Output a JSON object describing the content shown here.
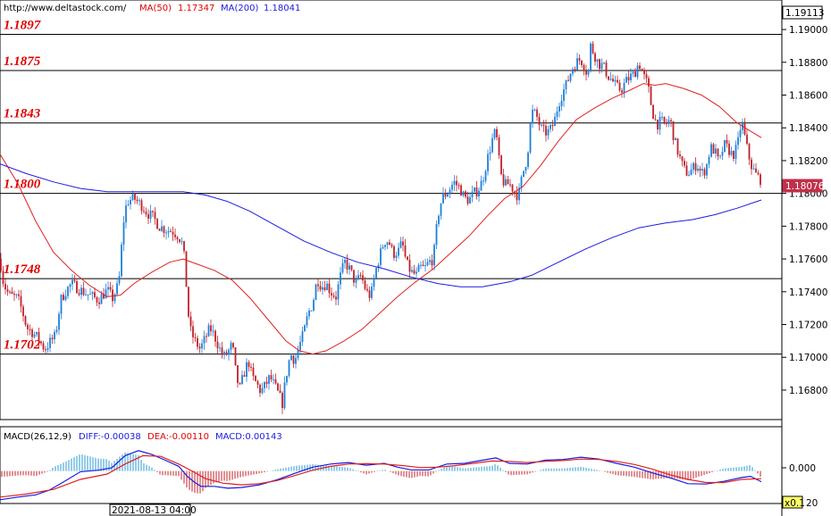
{
  "header": {
    "site": "http://www.deltastock.com/",
    "ma50_label": "MA(50)",
    "ma50_value": "1.17347",
    "ma200_label": "MA(200)",
    "ma200_value": "1.18041"
  },
  "price_box_top": "1.19113",
  "price_box_current": "1.18076",
  "macd_header": {
    "name": "MACD(26,12,9)",
    "diff": "DIFF:-0.00038",
    "dea": "DEA:-0.00110",
    "macd": "MACD:0.00143"
  },
  "macd_axis_zero": "0.000",
  "macd_scale_label": "x0.1",
  "macd_scale_suffix": "20",
  "date_label": "2021-08-13 04:00",
  "colors": {
    "bull": "#1e7fd8",
    "bear": "#c0202a",
    "ma50": "#e02020",
    "ma200": "#1a1ae0",
    "level_text": "#e00000",
    "diff_line": "#1a1ae0",
    "dea_line": "#e02020",
    "hist_pos": "#2a9ad0",
    "hist_neg": "#c0202a"
  },
  "chart_data": {
    "type": "candlestick",
    "y_ticks": [
      "1.19000",
      "1.18800",
      "1.18600",
      "1.18400",
      "1.18200",
      "1.18000",
      "1.17800",
      "1.17600",
      "1.17400",
      "1.17200",
      "1.17000",
      "1.16800"
    ],
    "ylim": [
      1.1662,
      1.1918
    ],
    "levels": [
      {
        "label": "1.1897",
        "value": 1.1897
      },
      {
        "label": "1.1875",
        "value": 1.1875
      },
      {
        "label": "1.1843",
        "value": 1.1843
      },
      {
        "label": "1.1800",
        "value": 1.18
      },
      {
        "label": "1.1748",
        "value": 1.1748
      },
      {
        "label": "1.1702",
        "value": 1.1702
      }
    ],
    "price_path": [
      [
        0,
        1.176
      ],
      [
        4,
        1.1745
      ],
      [
        10,
        1.1738
      ],
      [
        20,
        1.1736
      ],
      [
        25,
        1.1728
      ],
      [
        30,
        1.1718
      ],
      [
        35,
        1.1716
      ],
      [
        42,
        1.1712
      ],
      [
        50,
        1.1705
      ],
      [
        57,
        1.171
      ],
      [
        62,
        1.1713
      ],
      [
        68,
        1.1735
      ],
      [
        73,
        1.174
      ],
      [
        80,
        1.1745
      ],
      [
        90,
        1.1741
      ],
      [
        100,
        1.1738
      ],
      [
        110,
        1.1735
      ],
      [
        120,
        1.1741
      ],
      [
        126,
        1.1736
      ],
      [
        133,
        1.1745
      ],
      [
        138,
        1.1782
      ],
      [
        142,
        1.1795
      ],
      [
        150,
        1.1797
      ],
      [
        158,
        1.1793
      ],
      [
        165,
        1.1788
      ],
      [
        172,
        1.1785
      ],
      [
        178,
        1.178
      ],
      [
        185,
        1.1778
      ],
      [
        193,
        1.1777
      ],
      [
        200,
        1.1774
      ],
      [
        205,
        1.1768
      ],
      [
        208,
        1.1748
      ],
      [
        212,
        1.1718
      ],
      [
        218,
        1.171
      ],
      [
        224,
        1.1705
      ],
      [
        230,
        1.1712
      ],
      [
        235,
        1.1718
      ],
      [
        240,
        1.1713
      ],
      [
        246,
        1.1705
      ],
      [
        250,
        1.17
      ],
      [
        255,
        1.1703
      ],
      [
        260,
        1.1708
      ],
      [
        264,
        1.169
      ],
      [
        268,
        1.168
      ],
      [
        273,
        1.169
      ],
      [
        278,
        1.1698
      ],
      [
        282,
        1.1688
      ],
      [
        287,
        1.1684
      ],
      [
        292,
        1.1679
      ],
      [
        297,
        1.1683
      ],
      [
        302,
        1.1688
      ],
      [
        307,
        1.1683
      ],
      [
        312,
        1.1677
      ],
      [
        316,
        1.1672
      ],
      [
        320,
        1.1688
      ],
      [
        325,
        1.1702
      ],
      [
        330,
        1.1698
      ],
      [
        335,
        1.1707
      ],
      [
        340,
        1.1715
      ],
      [
        345,
        1.1727
      ],
      [
        350,
        1.1733
      ],
      [
        355,
        1.1748
      ],
      [
        360,
        1.1743
      ],
      [
        365,
        1.1745
      ],
      [
        370,
        1.174
      ],
      [
        376,
        1.1737
      ],
      [
        382,
        1.1752
      ],
      [
        386,
        1.1758
      ],
      [
        392,
        1.1753
      ],
      [
        398,
        1.1745
      ],
      [
        404,
        1.175
      ],
      [
        410,
        1.174
      ],
      [
        415,
        1.1737
      ],
      [
        420,
        1.1752
      ],
      [
        425,
        1.1762
      ],
      [
        430,
        1.1771
      ],
      [
        435,
        1.1771
      ],
      [
        440,
        1.1763
      ],
      [
        446,
        1.1765
      ],
      [
        450,
        1.177
      ],
      [
        455,
        1.1757
      ],
      [
        460,
        1.1752
      ],
      [
        466,
        1.175
      ],
      [
        470,
        1.1755
      ],
      [
        475,
        1.1754
      ],
      [
        480,
        1.1758
      ],
      [
        485,
        1.176
      ],
      [
        490,
        1.1786
      ],
      [
        495,
        1.1798
      ],
      [
        500,
        1.18
      ],
      [
        508,
        1.1807
      ],
      [
        515,
        1.1803
      ],
      [
        520,
        1.1797
      ],
      [
        525,
        1.1796
      ],
      [
        530,
        1.18
      ],
      [
        535,
        1.1802
      ],
      [
        540,
        1.1808
      ],
      [
        545,
        1.182
      ],
      [
        552,
        1.1835
      ],
      [
        555,
        1.1838
      ],
      [
        560,
        1.1812
      ],
      [
        565,
        1.1805
      ],
      [
        570,
        1.1806
      ],
      [
        575,
        1.1802
      ],
      [
        580,
        1.1798
      ],
      [
        585,
        1.1812
      ],
      [
        590,
        1.1822
      ],
      [
        595,
        1.185
      ],
      [
        600,
        1.1848
      ],
      [
        605,
        1.184
      ],
      [
        610,
        1.1837
      ],
      [
        615,
        1.1838
      ],
      [
        620,
        1.1843
      ],
      [
        625,
        1.1855
      ],
      [
        630,
        1.1862
      ],
      [
        635,
        1.1868
      ],
      [
        640,
        1.1876
      ],
      [
        645,
        1.188
      ],
      [
        650,
        1.1882
      ],
      [
        655,
        1.1876
      ],
      [
        658,
        1.1872
      ],
      [
        661,
        1.189
      ],
      [
        665,
        1.1885
      ],
      [
        670,
        1.1879
      ],
      [
        675,
        1.1878
      ],
      [
        680,
        1.1872
      ],
      [
        685,
        1.1869
      ],
      [
        690,
        1.1865
      ],
      [
        695,
        1.1863
      ],
      [
        700,
        1.1868
      ],
      [
        705,
        1.1871
      ],
      [
        710,
        1.1873
      ],
      [
        715,
        1.188
      ],
      [
        720,
        1.1872
      ],
      [
        725,
        1.1866
      ],
      [
        730,
        1.185
      ],
      [
        735,
        1.1842
      ],
      [
        740,
        1.1844
      ],
      [
        745,
        1.1842
      ],
      [
        750,
        1.1845
      ],
      [
        755,
        1.1832
      ],
      [
        760,
        1.1823
      ],
      [
        765,
        1.1815
      ],
      [
        770,
        1.1812
      ],
      [
        775,
        1.1815
      ],
      [
        780,
        1.1818
      ],
      [
        785,
        1.1812
      ],
      [
        790,
        1.1815
      ],
      [
        795,
        1.1828
      ],
      [
        800,
        1.1826
      ],
      [
        805,
        1.1818
      ],
      [
        810,
        1.183
      ],
      [
        815,
        1.1827
      ],
      [
        820,
        1.1823
      ],
      [
        825,
        1.1828
      ],
      [
        830,
        1.1845
      ],
      [
        835,
        1.183
      ],
      [
        840,
        1.1818
      ],
      [
        845,
        1.1812
      ],
      [
        852,
        1.1808
      ]
    ],
    "ma50_path": [
      [
        0,
        1.1824
      ],
      [
        20,
        1.1806
      ],
      [
        40,
        1.1783
      ],
      [
        60,
        1.1764
      ],
      [
        80,
        1.1753
      ],
      [
        100,
        1.1744
      ],
      [
        120,
        1.1737
      ],
      [
        135,
        1.1738
      ],
      [
        150,
        1.1745
      ],
      [
        170,
        1.1752
      ],
      [
        190,
        1.1758
      ],
      [
        205,
        1.176
      ],
      [
        220,
        1.1757
      ],
      [
        240,
        1.1753
      ],
      [
        260,
        1.1747
      ],
      [
        280,
        1.1736
      ],
      [
        300,
        1.1723
      ],
      [
        320,
        1.171
      ],
      [
        335,
        1.1704
      ],
      [
        350,
        1.1702
      ],
      [
        365,
        1.1704
      ],
      [
        385,
        1.171
      ],
      [
        405,
        1.1717
      ],
      [
        425,
        1.1727
      ],
      [
        445,
        1.1737
      ],
      [
        465,
        1.1746
      ],
      [
        485,
        1.1754
      ],
      [
        505,
        1.1764
      ],
      [
        525,
        1.1774
      ],
      [
        545,
        1.1786
      ],
      [
        565,
        1.1797
      ],
      [
        585,
        1.1804
      ],
      [
        605,
        1.1817
      ],
      [
        625,
        1.1832
      ],
      [
        645,
        1.1845
      ],
      [
        665,
        1.1852
      ],
      [
        685,
        1.1858
      ],
      [
        705,
        1.1863
      ],
      [
        720,
        1.1867
      ],
      [
        733,
        1.1866
      ],
      [
        745,
        1.1867
      ],
      [
        765,
        1.1864
      ],
      [
        785,
        1.186
      ],
      [
        805,
        1.1853
      ],
      [
        825,
        1.1843
      ],
      [
        840,
        1.1838
      ],
      [
        852,
        1.1834
      ]
    ],
    "ma200_path": [
      [
        0,
        1.1818
      ],
      [
        30,
        1.1812
      ],
      [
        60,
        1.1807
      ],
      [
        90,
        1.1803
      ],
      [
        120,
        1.1801
      ],
      [
        145,
        1.1801
      ],
      [
        175,
        1.1801
      ],
      [
        205,
        1.1801
      ],
      [
        230,
        1.1799
      ],
      [
        255,
        1.1795
      ],
      [
        280,
        1.1789
      ],
      [
        310,
        1.178
      ],
      [
        340,
        1.1771
      ],
      [
        370,
        1.1764
      ],
      [
        400,
        1.1758
      ],
      [
        430,
        1.1754
      ],
      [
        460,
        1.1749
      ],
      [
        490,
        1.1745
      ],
      [
        515,
        1.1743
      ],
      [
        540,
        1.1743
      ],
      [
        570,
        1.1746
      ],
      [
        595,
        1.175
      ],
      [
        625,
        1.1758
      ],
      [
        655,
        1.1766
      ],
      [
        685,
        1.1773
      ],
      [
        715,
        1.1779
      ],
      [
        745,
        1.1782
      ],
      [
        775,
        1.1784
      ],
      [
        800,
        1.1787
      ],
      [
        825,
        1.1791
      ],
      [
        852,
        1.1796
      ]
    ],
    "diff_path": [
      [
        0,
        -0.0075
      ],
      [
        20,
        -0.0068
      ],
      [
        40,
        -0.0062
      ],
      [
        55,
        -0.005
      ],
      [
        70,
        -0.003
      ],
      [
        90,
        -0.0002
      ],
      [
        110,
        0.0002
      ],
      [
        125,
        0.0008
      ],
      [
        140,
        0.004
      ],
      [
        155,
        0.0053
      ],
      [
        170,
        0.0043
      ],
      [
        185,
        0.0028
      ],
      [
        200,
        0.0012
      ],
      [
        210,
        -0.0015
      ],
      [
        218,
        -0.003
      ],
      [
        225,
        -0.004
      ],
      [
        240,
        -0.004
      ],
      [
        255,
        -0.0045
      ],
      [
        270,
        -0.0043
      ],
      [
        290,
        -0.0036
      ],
      [
        310,
        -0.0023
      ],
      [
        330,
        -0.0006
      ],
      [
        350,
        0.001
      ],
      [
        370,
        0.0018
      ],
      [
        390,
        0.0022
      ],
      [
        410,
        0.0015
      ],
      [
        430,
        0.002
      ],
      [
        445,
        0.001
      ],
      [
        460,
        0.0003
      ],
      [
        480,
        0.0003
      ],
      [
        500,
        0.0018
      ],
      [
        520,
        0.002
      ],
      [
        540,
        0.0028
      ],
      [
        555,
        0.0034
      ],
      [
        570,
        0.002
      ],
      [
        590,
        0.0018
      ],
      [
        610,
        0.0028
      ],
      [
        630,
        0.003
      ],
      [
        650,
        0.0036
      ],
      [
        670,
        0.0031
      ],
      [
        690,
        0.002
      ],
      [
        710,
        0.001
      ],
      [
        730,
        -0.0005
      ],
      [
        750,
        -0.0018
      ],
      [
        770,
        -0.0033
      ],
      [
        790,
        -0.0034
      ],
      [
        810,
        -0.0027
      ],
      [
        830,
        -0.0017
      ],
      [
        840,
        -0.0014
      ],
      [
        852,
        -0.0028
      ]
    ],
    "dea_path": [
      [
        0,
        -0.0068
      ],
      [
        30,
        -0.006
      ],
      [
        60,
        -0.0048
      ],
      [
        90,
        -0.0022
      ],
      [
        120,
        -0.0008
      ],
      [
        140,
        0.0018
      ],
      [
        160,
        0.004
      ],
      [
        180,
        0.0038
      ],
      [
        200,
        0.0018
      ],
      [
        215,
        0.0
      ],
      [
        230,
        -0.002
      ],
      [
        250,
        -0.0032
      ],
      [
        270,
        -0.0036
      ],
      [
        290,
        -0.0033
      ],
      [
        310,
        -0.0025
      ],
      [
        330,
        -0.0012
      ],
      [
        350,
        0.0002
      ],
      [
        370,
        0.0012
      ],
      [
        390,
        0.0018
      ],
      [
        410,
        0.0019
      ],
      [
        430,
        0.0018
      ],
      [
        450,
        0.0014
      ],
      [
        470,
        0.0009
      ],
      [
        490,
        0.001
      ],
      [
        510,
        0.0014
      ],
      [
        530,
        0.002
      ],
      [
        550,
        0.0026
      ],
      [
        570,
        0.0025
      ],
      [
        590,
        0.0022
      ],
      [
        610,
        0.0025
      ],
      [
        630,
        0.0027
      ],
      [
        650,
        0.0031
      ],
      [
        670,
        0.003
      ],
      [
        690,
        0.0025
      ],
      [
        710,
        0.0017
      ],
      [
        730,
        0.0005
      ],
      [
        750,
        -0.001
      ],
      [
        770,
        -0.0022
      ],
      [
        790,
        -0.003
      ],
      [
        810,
        -0.003
      ],
      [
        830,
        -0.0022
      ],
      [
        852,
        -0.002
      ]
    ],
    "macd_ylim": [
      -0.008,
      0.0078
    ]
  }
}
